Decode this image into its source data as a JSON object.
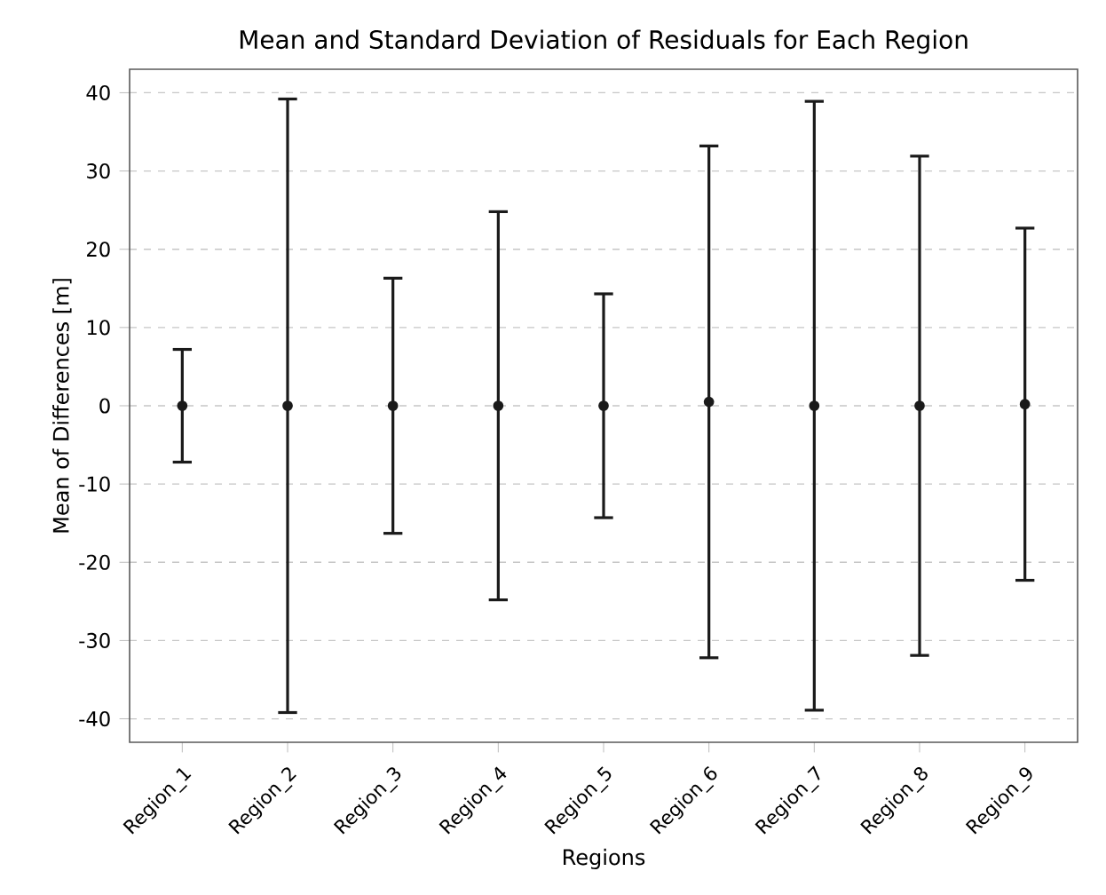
{
  "chart_data": {
    "type": "scatter",
    "title": "Mean and Standard Deviation of Residuals for Each Region",
    "xlabel": "Regions",
    "ylabel": "Mean of Differences [m]",
    "categories": [
      "Region_1",
      "Region_2",
      "Region_3",
      "Region_4",
      "Region_5",
      "Region_6",
      "Region_7",
      "Region_8",
      "Region_9"
    ],
    "values": [
      0,
      0,
      0,
      0,
      0,
      0.5,
      0,
      0,
      0.2
    ],
    "errors": [
      7.2,
      39.2,
      16.3,
      24.8,
      14.3,
      32.7,
      38.9,
      31.9,
      22.5
    ],
    "color": "#1a1a1a",
    "ylim": [
      -43,
      43
    ],
    "yticks": [
      -40,
      -30,
      -20,
      -10,
      0,
      10,
      20,
      30,
      40
    ],
    "grid": "y"
  }
}
